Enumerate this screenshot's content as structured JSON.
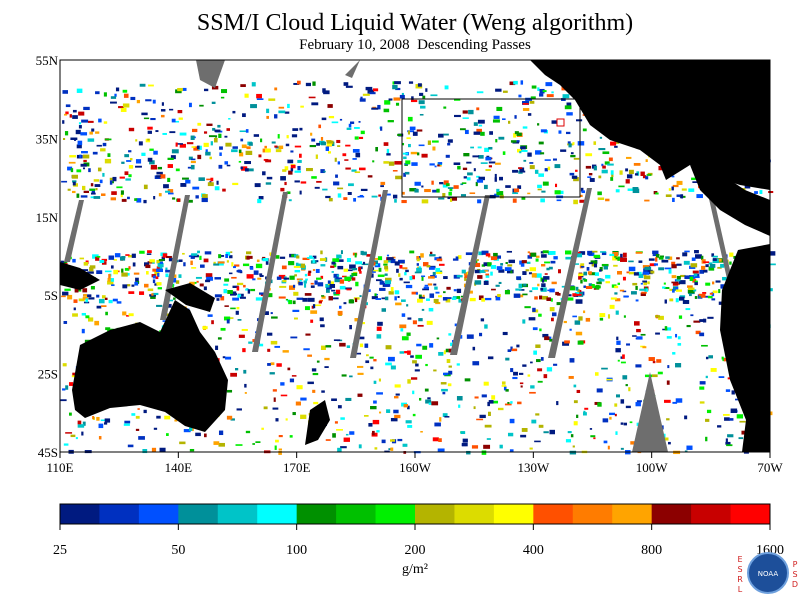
{
  "header": {
    "title": "SSM/I Cloud Liquid Water (Weng algorithm)",
    "subtitle": "February 10, 2008  Descending Passes"
  },
  "map": {
    "lat_labels": [
      "55N",
      "35N",
      "15N",
      "5S",
      "25S",
      "45S"
    ],
    "lon_labels": [
      "110E",
      "140E",
      "170E",
      "160W",
      "130W",
      "100W",
      "70W"
    ]
  },
  "colorbar": {
    "colors": [
      "#001a80",
      "#0030c0",
      "#0050ff",
      "#00909a",
      "#00c4c8",
      "#00ffff",
      "#009000",
      "#00c000",
      "#00f000",
      "#b4b400",
      "#dcdc00",
      "#ffff00",
      "#ff5000",
      "#ff7c00",
      "#ffa400",
      "#8c0000",
      "#c80000",
      "#ff0000"
    ],
    "ticks": [
      25,
      50,
      100,
      200,
      400,
      800,
      1600
    ],
    "unit": "g/m²"
  },
  "logo": {
    "left": [
      "E",
      "S",
      "R",
      "L"
    ],
    "right": [
      "P",
      "S",
      "D"
    ],
    "center": "NOAA"
  }
}
